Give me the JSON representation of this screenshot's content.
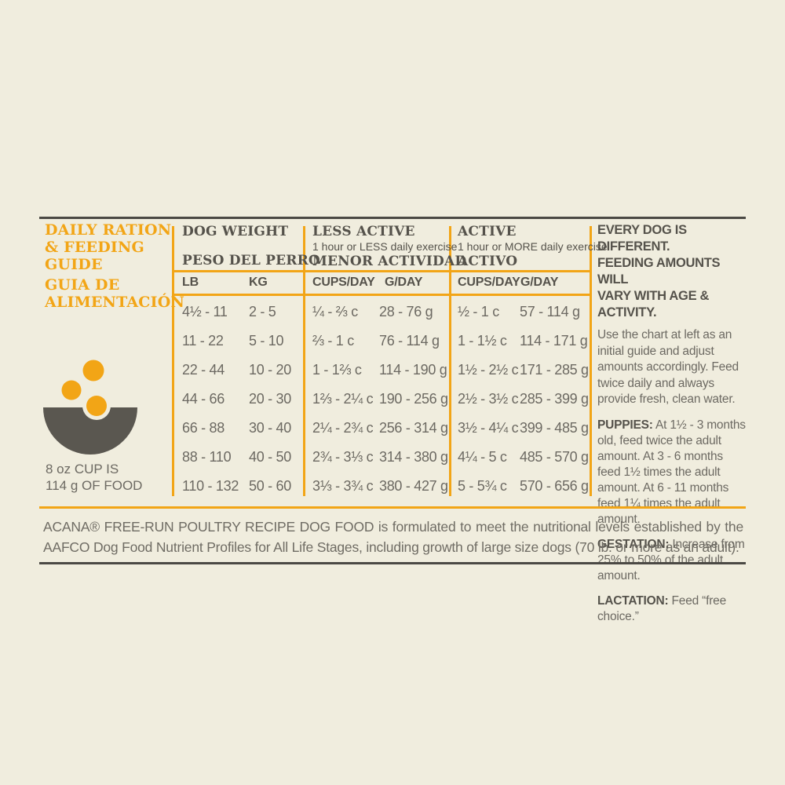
{
  "page": {
    "background": "#F0EDDE",
    "accent_orange": "#F2A516",
    "heading_text_color": "#55524B",
    "body_text_color": "#6C6962",
    "rule_color": "#4B4944"
  },
  "left_panel": {
    "title_en": "DAILY RATION\n& FEEDING\nGUIDE",
    "title_es": "GUIA DE\nALIMENTACIÓN",
    "cup_note": "8 oz CUP IS\n114 g OF FOOD"
  },
  "table": {
    "groups": [
      {
        "title": "DOG WEIGHT",
        "title_es": "PESO DEL PERRO",
        "subtitle": ""
      },
      {
        "title": "LESS ACTIVE",
        "subtitle": "1 hour or LESS daily exercise",
        "title_es": "MENOR ACTIVIDAD"
      },
      {
        "title": "ACTIVE",
        "subtitle": "1 hour or MORE daily exercise",
        "title_es": "ACTIVO"
      }
    ],
    "columns": [
      "LB",
      "KG",
      "CUPS/DAY",
      "G/DAY",
      "CUPS/DAY",
      "G/DAY"
    ],
    "rows": [
      {
        "lb": "4½ - 11",
        "kg": "2 - 5",
        "la_cups": "¼ - ⅔ c",
        "la_g": "28 - 76 g",
        "a_cups": "½ - 1 c",
        "a_g": "57 - 114 g"
      },
      {
        "lb": "11 - 22",
        "kg": "5 - 10",
        "la_cups": "⅔ - 1 c",
        "la_g": "76 - 114 g",
        "a_cups": "1 - 1½ c",
        "a_g": "114 - 171 g"
      },
      {
        "lb": "22 - 44",
        "kg": "10 - 20",
        "la_cups": "1 - 1⅔ c",
        "la_g": "114 - 190 g",
        "a_cups": "1½ - 2½ c",
        "a_g": "171 - 285 g"
      },
      {
        "lb": "44 - 66",
        "kg": "20 - 30",
        "la_cups": "1⅔ - 2¼ c",
        "la_g": "190 - 256 g",
        "a_cups": "2½ - 3½ c",
        "a_g": "285 - 399 g"
      },
      {
        "lb": "66 - 88",
        "kg": "30 - 40",
        "la_cups": "2¼ - 2¾ c",
        "la_g": "256 - 314 g",
        "a_cups": "3½ - 4¼ c",
        "a_g": "399 - 485 g"
      },
      {
        "lb": "88 - 110",
        "kg": "40 - 50",
        "la_cups": "2¾ - 3⅓ c",
        "la_g": "314 - 380 g",
        "a_cups": "4¼ - 5 c",
        "a_g": "485 - 570 g"
      },
      {
        "lb": "110 - 132",
        "kg": "50 - 60",
        "la_cups": "3⅓ - 3¾ c",
        "la_g": "380 - 427 g",
        "a_cups": "5 - 5¾ c",
        "a_g": "570 - 656 g"
      }
    ]
  },
  "right_panel": {
    "heading": "EVERY DOG IS DIFFERENT.\nFEEDING AMOUNTS WILL\nVARY WITH AGE & ACTIVITY.",
    "intro": "Use the chart at left as an initial guide and adjust amounts accordingly. Feed twice daily and always provide fresh, clean water.",
    "sections": [
      {
        "label": "PUPPIES:",
        "text": " At 1½ - 3 months old, feed twice the adult amount. At 3 - 6 months feed 1½ times the adult amount. At 6 - 11 months feed 1¼ times the adult amount."
      },
      {
        "label": "GESTATION:",
        "text": " Increase from 25% to 50% of the adult amount."
      },
      {
        "label": "LACTATION:",
        "text": " Feed “free choice.”"
      }
    ]
  },
  "footer": {
    "text": "ACANA® FREE-RUN POULTRY RECIPE DOG FOOD is formulated to meet the nutritional levels established by the AAFCO Dog Food Nutrient Profiles for All Life Stages, including growth of large size dogs (70 lb. or more as an adult)."
  }
}
